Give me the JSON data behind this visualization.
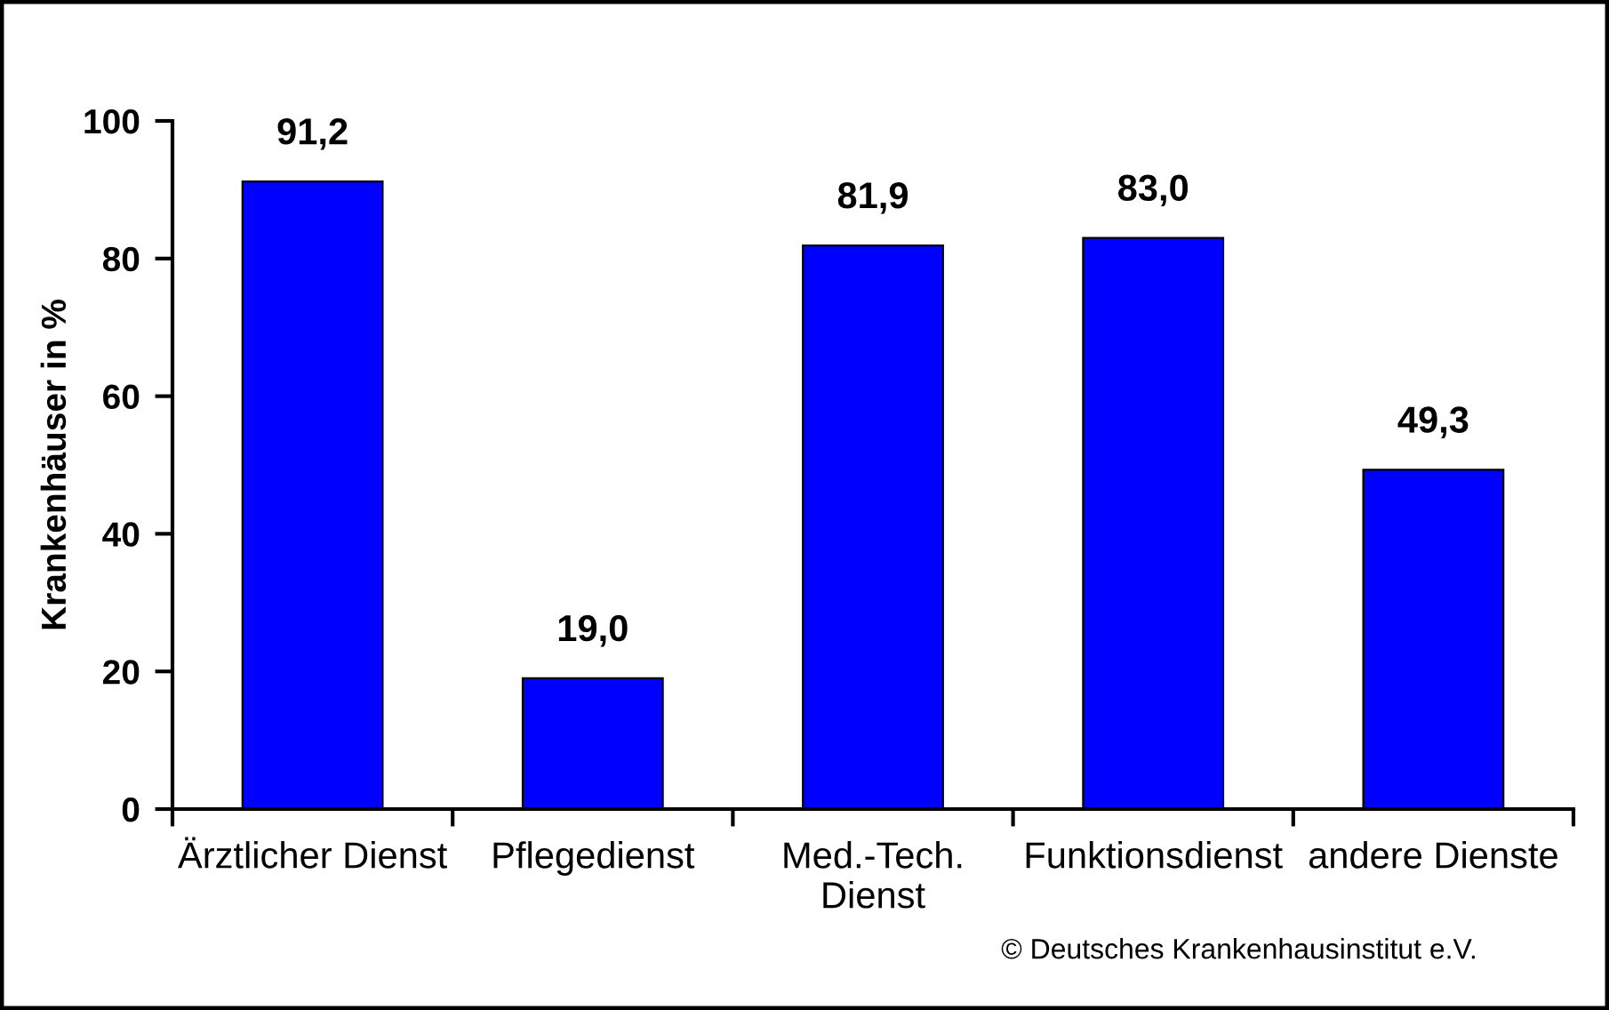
{
  "chart_data": {
    "type": "bar",
    "ylabel": "Krankenhäuser in %",
    "categories": [
      "Ärztlicher Dienst",
      "Pflegedienst",
      "Med.-Tech.\nDienst",
      "Funktionsdienst",
      "andere Dienste"
    ],
    "values": [
      91.2,
      19.0,
      81.9,
      83.0,
      49.3
    ],
    "color": "#0000ff",
    "value_labels": [
      "91,2",
      "19,0",
      "81,9",
      "83,0",
      "49,3"
    ],
    "ylim": [
      0,
      100
    ],
    "yticks": [
      0,
      20,
      40,
      60,
      80,
      100
    ],
    "annotations": [
      "© Deutsches Krankenhausinstitut e.V."
    ]
  }
}
